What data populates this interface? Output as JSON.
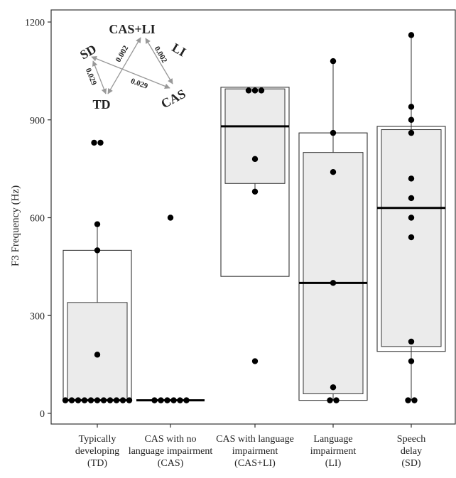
{
  "chart_data": {
    "type": "box",
    "ylabel": "F3 Frequency (Hz)",
    "ylim": [
      -30,
      1240
    ],
    "yticks": [
      0,
      300,
      600,
      900,
      1200
    ],
    "grid": false,
    "categories": [
      {
        "lines": [
          "Typically",
          "developing",
          "(TD)"
        ]
      },
      {
        "lines": [
          "CAS with no",
          "language impairment",
          "(CAS)"
        ]
      },
      {
        "lines": [
          "CAS with language",
          "impairment",
          "(CAS+LI)"
        ]
      },
      {
        "lines": [
          "Language",
          "impairment",
          "(LI)"
        ]
      },
      {
        "lines": [
          "Speech",
          "delay",
          "(SD)"
        ]
      }
    ],
    "groups": [
      {
        "outer_box": [
          40,
          500
        ],
        "inner_box": [
          40,
          340
        ],
        "median": 40,
        "whisker": [
          40,
          580
        ],
        "points": [
          40,
          40,
          40,
          40,
          40,
          40,
          40,
          40,
          40,
          40,
          40,
          180,
          500,
          580,
          830,
          830
        ]
      },
      {
        "outer_box": null,
        "inner_box": null,
        "median": 40,
        "whisker": null,
        "points": [
          40,
          40,
          40,
          40,
          40,
          40,
          600
        ]
      },
      {
        "outer_box": [
          420,
          1000
        ],
        "inner_box": [
          705,
          995
        ],
        "median": 880,
        "whisker": [
          680,
          995
        ],
        "points": [
          160,
          680,
          780,
          990,
          990,
          990
        ]
      },
      {
        "outer_box": [
          40,
          860
        ],
        "inner_box": [
          60,
          800
        ],
        "median": 400,
        "whisker": [
          40,
          1080
        ],
        "points": [
          40,
          40,
          80,
          400,
          740,
          860,
          1080
        ]
      },
      {
        "outer_box": [
          190,
          880
        ],
        "inner_box": [
          205,
          870
        ],
        "median": 630,
        "whisker": [
          40,
          1160
        ],
        "points": [
          40,
          40,
          160,
          220,
          540,
          600,
          660,
          720,
          860,
          900,
          940,
          1160
        ]
      }
    ],
    "inset": {
      "labels": {
        "sd": "SD",
        "td": "TD",
        "casli": "CAS+LI",
        "li": "LI",
        "cas": "CAS"
      },
      "p_values": {
        "sd_td": "0.029",
        "td_casli": "0.002",
        "casli_li": "0.002",
        "sd_cas": "0.029"
      },
      "arrow_color": "#999999"
    },
    "colors": {
      "box_fill": "#ebebeb",
      "box_stroke": "#333333",
      "point": "#000000",
      "median": "#000000",
      "axis": "#333333"
    }
  }
}
